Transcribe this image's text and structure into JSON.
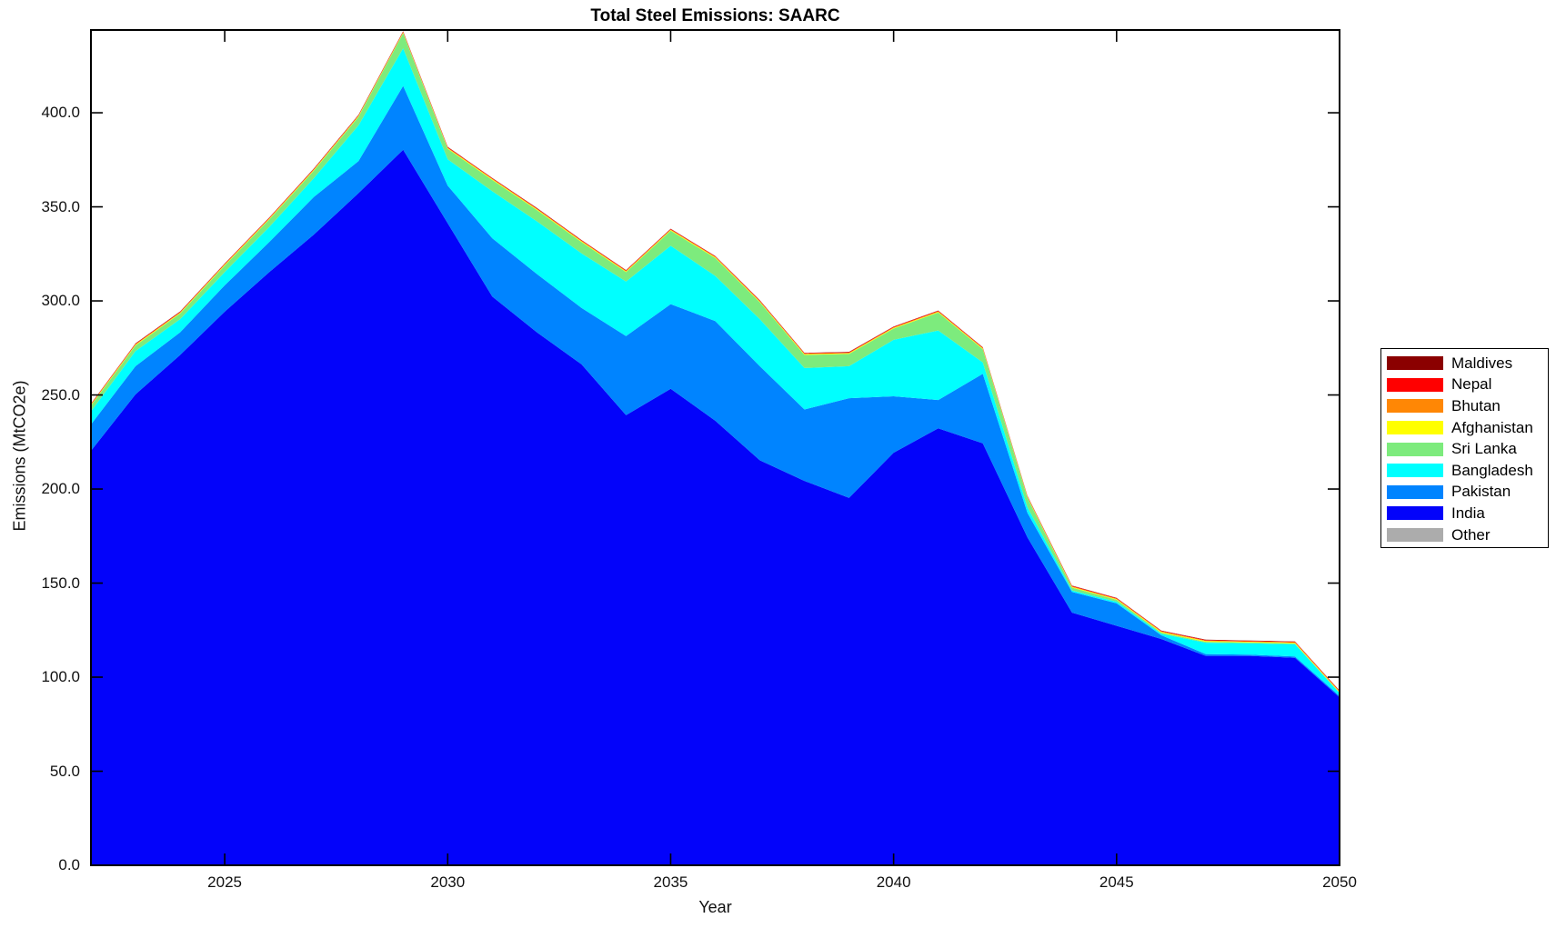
{
  "page": {
    "background_color": "#ffffff"
  },
  "chart_data": {
    "type": "area",
    "stacked": true,
    "title": "Total Steel Emissions: SAARC",
    "xlabel": "Year",
    "ylabel": "Emissions (MtCO2e)",
    "xlim": [
      2022,
      2050
    ],
    "ylim": [
      0,
      444
    ],
    "xticks": [
      2025,
      2030,
      2035,
      2040,
      2045,
      2050
    ],
    "yticks": [
      0,
      50,
      100,
      150,
      200,
      250,
      300,
      350,
      400
    ],
    "ytick_decimals": 1,
    "grid": false,
    "axis_color": "#000000",
    "tick_label_color": "#111111",
    "legend_position": "right-outside",
    "legend_order_top_to_bottom": [
      "Maldives",
      "Nepal",
      "Bhutan",
      "Afghanistan",
      "Sri Lanka",
      "Bangladesh",
      "Pakistan",
      "India",
      "Other"
    ],
    "x": [
      2022,
      2023,
      2024,
      2025,
      2026,
      2027,
      2028,
      2029,
      2030,
      2031,
      2032,
      2033,
      2034,
      2035,
      2036,
      2037,
      2038,
      2039,
      2040,
      2041,
      2042,
      2043,
      2044,
      2045,
      2046,
      2047,
      2048,
      2049,
      2050
    ],
    "series": [
      {
        "name": "Other",
        "color": "#ACACAC",
        "values": [
          0.3,
          0.3,
          0.3,
          0.3,
          0.3,
          0.3,
          0.3,
          0.3,
          0.3,
          0.3,
          0.3,
          0.3,
          0.3,
          0.3,
          0.3,
          0.3,
          0.3,
          0.3,
          0.3,
          0.3,
          0.3,
          0.3,
          0.3,
          0.3,
          0.3,
          0.3,
          0.3,
          0.3,
          0.3
        ]
      },
      {
        "name": "India",
        "color": "#0303FA",
        "values": [
          220,
          250,
          271,
          294,
          315,
          335,
          357,
          380,
          341,
          302,
          283,
          266,
          239,
          253,
          236,
          215,
          204,
          195,
          219,
          232,
          224,
          174,
          134,
          127,
          120,
          111,
          111,
          110,
          89
        ]
      },
      {
        "name": "Pakistan",
        "color": "#0084FF",
        "values": [
          14,
          15,
          12,
          14,
          16,
          20,
          17,
          34,
          20,
          31,
          31,
          30,
          42,
          45,
          53,
          50,
          38,
          53,
          30,
          15,
          37,
          13,
          11,
          12,
          2,
          1,
          0.7,
          0.7,
          0.7
        ]
      },
      {
        "name": "Bangladesh",
        "color": "#00FFFF",
        "values": [
          7,
          8,
          7,
          7,
          8,
          10,
          19,
          20,
          14,
          25,
          28,
          29,
          29,
          31,
          24,
          25,
          22,
          17,
          30,
          37,
          6,
          3,
          0.8,
          0.8,
          0.8,
          6,
          6,
          6.5,
          1.5
        ]
      },
      {
        "name": "Sri Lanka",
        "color": "#7DEB7D",
        "values": [
          3,
          3,
          3,
          3.5,
          4,
          4,
          4.5,
          8,
          5.5,
          6,
          6,
          6,
          5,
          8,
          9.5,
          9,
          7,
          6.5,
          6,
          9.5,
          7,
          5,
          1.5,
          1,
          0.6,
          0.5,
          0.4,
          0.4,
          0.3
        ]
      },
      {
        "name": "Afghanistan",
        "color": "#FFFF00",
        "values": [
          0.4,
          0.4,
          0.4,
          0.4,
          0.4,
          0.4,
          0.4,
          0.4,
          0.4,
          0.4,
          0.4,
          0.4,
          0.4,
          0.4,
          0.4,
          0.4,
          0.4,
          0.4,
          0.4,
          0.4,
          0.4,
          0.4,
          0.4,
          0.4,
          0.4,
          0.4,
          0.4,
          0.4,
          0.4
        ]
      },
      {
        "name": "Bhutan",
        "color": "#FF8705",
        "values": [
          0.25,
          0.25,
          0.25,
          0.25,
          0.25,
          0.25,
          0.25,
          0.25,
          0.25,
          0.25,
          0.25,
          0.25,
          0.25,
          0.25,
          0.25,
          0.25,
          0.25,
          0.25,
          0.25,
          0.25,
          0.25,
          0.25,
          0.25,
          0.25,
          0.25,
          0.25,
          0.25,
          0.25,
          0.25
        ]
      },
      {
        "name": "Nepal",
        "color": "#FF0000",
        "values": [
          0.3,
          0.3,
          0.3,
          0.3,
          0.3,
          0.3,
          0.3,
          0.3,
          0.3,
          0.3,
          0.3,
          0.3,
          0.3,
          0.3,
          0.3,
          0.3,
          0.3,
          0.3,
          0.3,
          0.3,
          0.3,
          0.3,
          0.3,
          0.3,
          0.3,
          0.3,
          0.3,
          0.3,
          0.3
        ]
      },
      {
        "name": "Maldives",
        "color": "#8B0000",
        "values": [
          0.15,
          0.15,
          0.15,
          0.15,
          0.15,
          0.15,
          0.15,
          0.15,
          0.15,
          0.15,
          0.15,
          0.15,
          0.15,
          0.15,
          0.15,
          0.15,
          0.15,
          0.15,
          0.15,
          0.15,
          0.15,
          0.15,
          0.15,
          0.15,
          0.15,
          0.15,
          0.15,
          0.15,
          0.15
        ]
      }
    ]
  }
}
